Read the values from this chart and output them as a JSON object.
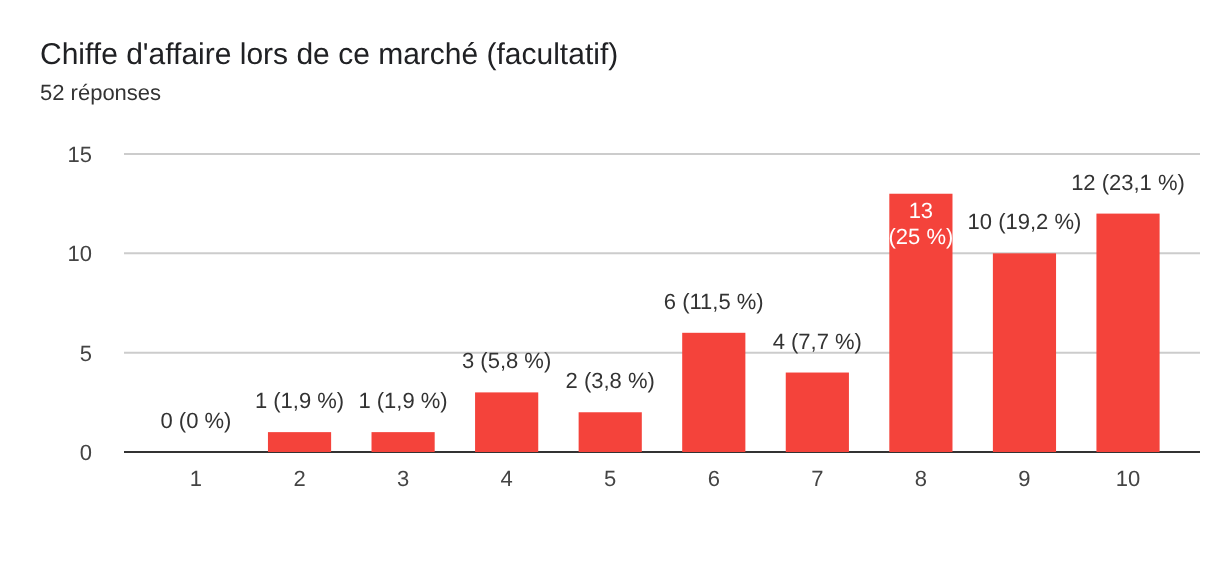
{
  "chart_data": {
    "type": "bar",
    "title": "Chiffe d'affaire lors de ce marché  (facultatif)",
    "subtitle": "52 réponses",
    "categories": [
      "1",
      "2",
      "3",
      "4",
      "5",
      "6",
      "7",
      "8",
      "9",
      "10"
    ],
    "values": [
      0,
      1,
      1,
      3,
      2,
      6,
      4,
      13,
      10,
      12
    ],
    "value_labels": [
      "0 (0 %)",
      "1 (1,9 %)",
      "1 (1,9 %)",
      "3 (5,8 %)",
      "2 (3,8 %)",
      "6 (11,5 %)",
      "4 (7,7 %)",
      "13 (25 %)",
      "10 (19,2 %)",
      "12 (23,1 %)"
    ],
    "color": "#f4433b",
    "ylim": [
      0,
      15
    ],
    "yticks": [
      0,
      5,
      10,
      15
    ],
    "grid": "y"
  }
}
